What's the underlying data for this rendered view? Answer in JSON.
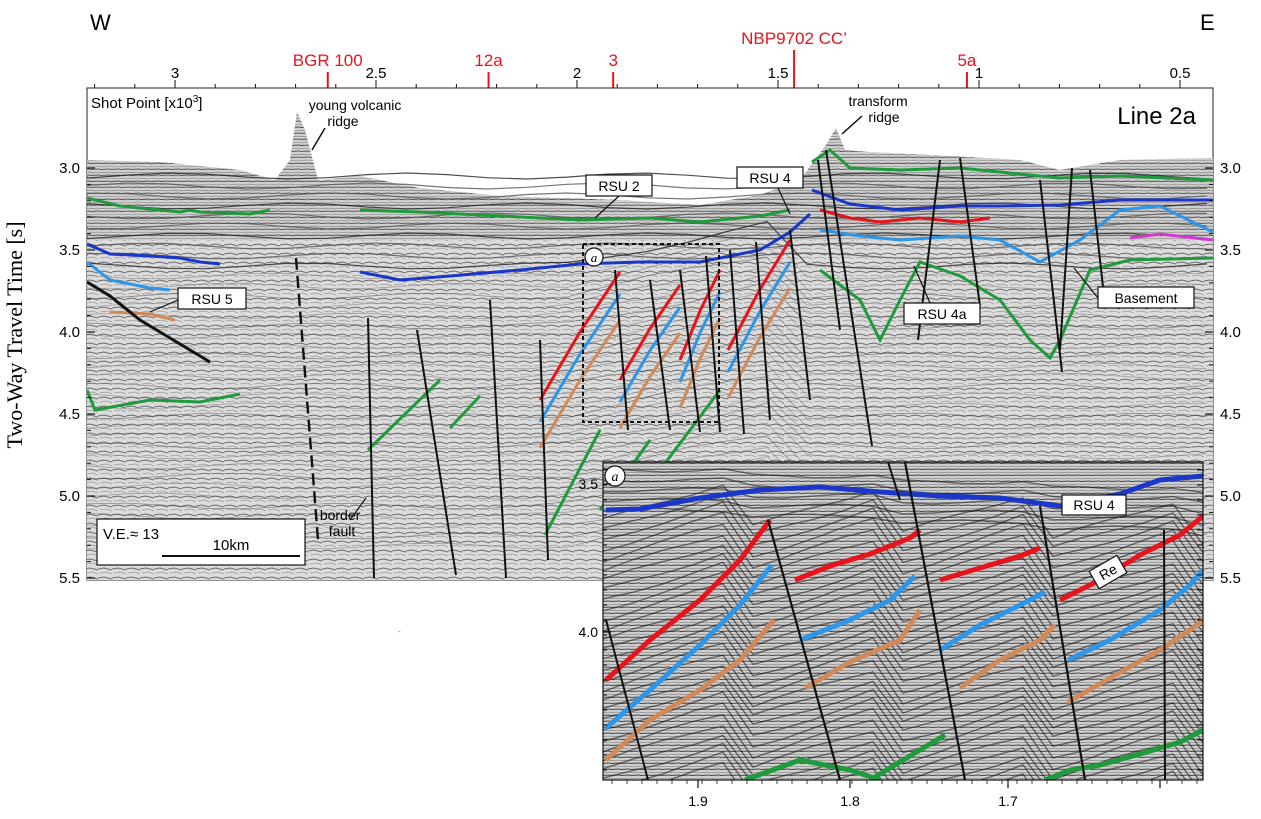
{
  "compass": {
    "west": "W",
    "east": "E"
  },
  "top_axis": {
    "shot_point_ticks": [
      {
        "label": "3",
        "value": 3.0
      },
      {
        "label": "2.5",
        "value": 2.5
      },
      {
        "label": "2",
        "value": 2.0
      },
      {
        "label": "1.5",
        "value": 1.5
      },
      {
        "label": "1",
        "value": 1.0
      },
      {
        "label": "0.5",
        "value": 0.5
      }
    ],
    "crossing_lines": [
      {
        "label": "BGR 100",
        "value": 2.62
      },
      {
        "label": "12a",
        "value": 2.22
      },
      {
        "label": "3",
        "value": 1.91
      },
      {
        "label": "NBP9702 CC’",
        "value": 1.46
      },
      {
        "label": "5a",
        "value": 1.03
      }
    ],
    "crossing_color": "#e8141c"
  },
  "panel": {
    "title": "Line 2a",
    "shot_point_label": "Shot Point [x10",
    "shot_point_sup": "3",
    "shot_point_close": "]",
    "y_axis_title": "Two-Way Travel Time [s]",
    "y_ticks": [
      "3.0",
      "3.5",
      "4.0",
      "4.5",
      "5.0",
      "5.5"
    ],
    "ve_label": "V.E.≈ 13",
    "scale_label": "10km",
    "inset_marker": "a"
  },
  "annotations": {
    "young_volcanic_ridge": [
      "young volcanic",
      "ridge"
    ],
    "transform_ridge": [
      "transform",
      "ridge"
    ],
    "border_fault": [
      "border",
      "fault"
    ]
  },
  "boxed_labels": {
    "rsu2": "RSU 2",
    "rsu4": "RSU 4",
    "rsu5": "RSU 5",
    "rsu4a": "RSU 4a",
    "basement": "Basement"
  },
  "inset": {
    "marker": "a",
    "y_ticks": [
      "3.5",
      "4.0"
    ],
    "x_ticks": [
      "1.9",
      "1.8",
      "1.7"
    ],
    "rsu4_label": "RSU 4",
    "re_label": "Re"
  },
  "horizon_colors": {
    "green": "#1f9a3c",
    "dark_blue": "#1a37c9",
    "light_blue": "#2d96e8",
    "red": "#e8141c",
    "orange": "#d08a5a",
    "magenta": "#d03ad0",
    "black": "#111111"
  }
}
